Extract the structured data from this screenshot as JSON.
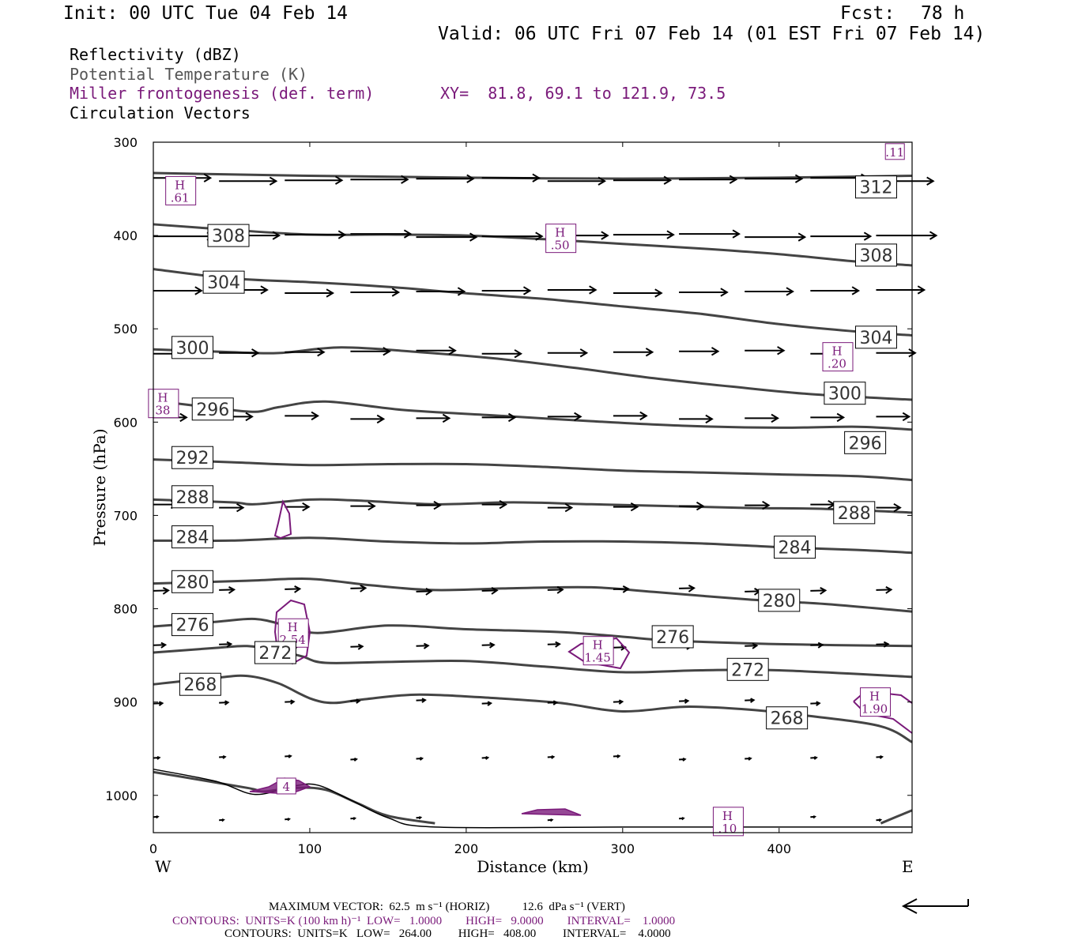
{
  "header": {
    "init": "Init: 00 UTC Tue 04 Feb 14",
    "fcst_label": "Fcst:",
    "fcst_value": "78 h",
    "valid": "Valid: 06 UTC Fri 07 Feb 14 (01 EST Fri 07 Feb 14)",
    "fields": [
      {
        "text": "Reflectivity (dBZ)",
        "color": "#000000"
      },
      {
        "text": "Potential Temperature (K)",
        "color": "#555555"
      },
      {
        "text": "Miller frontogenesis (def. term)",
        "color": "#7a1a7a"
      },
      {
        "text": "Circulation Vectors",
        "color": "#000000"
      }
    ],
    "xy": "XY=  81.8, 69.1 to 121.9, 73.5"
  },
  "chart_data": {
    "type": "line",
    "subtype": "vertical cross-section",
    "xlabel": "Distance (km)",
    "ylabel": "Pressure (hPa)",
    "xlim": [
      0,
      485
    ],
    "ylim": [
      1040,
      300
    ],
    "y_inverted": true,
    "x_ticks": [
      "0",
      "100",
      "200",
      "300",
      "400"
    ],
    "y_ticks": [
      "300",
      "400",
      "500",
      "600",
      "700",
      "800",
      "900",
      "1000"
    ],
    "x_end_labels": {
      "left": "W",
      "right": "E"
    },
    "theta_color": "#444444",
    "fronto_color": "#7a1a7a",
    "theta_contours": [
      {
        "level": "312",
        "points": [
          [
            0,
            333
          ],
          [
            100,
            336
          ],
          [
            200,
            338
          ],
          [
            300,
            339
          ],
          [
            400,
            338
          ],
          [
            485,
            336
          ]
        ],
        "label_pos": [
          462,
          348
        ]
      },
      {
        "level": "308",
        "points": [
          [
            0,
            388
          ],
          [
            50,
            394
          ],
          [
            100,
            399
          ],
          [
            150,
            399
          ],
          [
            200,
            400
          ],
          [
            250,
            404
          ],
          [
            300,
            409
          ],
          [
            350,
            414
          ],
          [
            400,
            420
          ],
          [
            450,
            428
          ],
          [
            485,
            432
          ]
        ],
        "label_pos": [
          48,
          400
        ]
      },
      {
        "level": "308",
        "points": [
          [
            0,
            388
          ],
          [
            485,
            432
          ]
        ],
        "label_pos": [
          462,
          421
        ],
        "label_only": true
      },
      {
        "level": "304",
        "points": [
          [
            0,
            436
          ],
          [
            50,
            446
          ],
          [
            100,
            450
          ],
          [
            150,
            455
          ],
          [
            200,
            462
          ],
          [
            250,
            468
          ],
          [
            300,
            476
          ],
          [
            350,
            484
          ],
          [
            400,
            495
          ],
          [
            450,
            503
          ],
          [
            485,
            507
          ]
        ],
        "label_pos": [
          45,
          450
        ]
      },
      {
        "level": "304",
        "points": [
          [
            0,
            436
          ],
          [
            485,
            507
          ]
        ],
        "label_pos": [
          462,
          509
        ],
        "label_only": true
      },
      {
        "level": "300",
        "points": [
          [
            0,
            522
          ],
          [
            50,
            525
          ],
          [
            80,
            526
          ],
          [
            120,
            520
          ],
          [
            170,
            525
          ],
          [
            220,
            532
          ],
          [
            270,
            542
          ],
          [
            320,
            553
          ],
          [
            370,
            562
          ],
          [
            420,
            570
          ],
          [
            485,
            576
          ]
        ],
        "label_pos": [
          25,
          520
        ]
      },
      {
        "level": "300",
        "points": [
          [
            0,
            522
          ],
          [
            485,
            576
          ]
        ],
        "label_pos": [
          442,
          569
        ],
        "label_only": true
      },
      {
        "level": "296",
        "points": [
          [
            0,
            577
          ],
          [
            40,
            585
          ],
          [
            65,
            589
          ],
          [
            80,
            584
          ],
          [
            110,
            578
          ],
          [
            160,
            587
          ],
          [
            220,
            593
          ],
          [
            280,
            599
          ],
          [
            340,
            604
          ],
          [
            400,
            606
          ],
          [
            450,
            605
          ],
          [
            485,
            608
          ]
        ],
        "label_pos": [
          38,
          586
        ]
      },
      {
        "level": "296",
        "points": [
          [
            0,
            577
          ],
          [
            485,
            608
          ]
        ],
        "label_pos": [
          455,
          622
        ],
        "label_only": true
      },
      {
        "level": "292",
        "points": [
          [
            0,
            640
          ],
          [
            50,
            643
          ],
          [
            100,
            646
          ],
          [
            150,
            645
          ],
          [
            200,
            645
          ],
          [
            250,
            648
          ],
          [
            300,
            652
          ],
          [
            350,
            654
          ],
          [
            400,
            656
          ],
          [
            450,
            658
          ],
          [
            485,
            662
          ]
        ],
        "label_pos": [
          25,
          638
        ]
      },
      {
        "level": "288",
        "points": [
          [
            0,
            683
          ],
          [
            50,
            686
          ],
          [
            65,
            688
          ],
          [
            100,
            683
          ],
          [
            130,
            684
          ],
          [
            180,
            688
          ],
          [
            230,
            686
          ],
          [
            280,
            688
          ],
          [
            330,
            690
          ],
          [
            380,
            692
          ],
          [
            430,
            693
          ],
          [
            485,
            697
          ]
        ],
        "label_pos": [
          25,
          680
        ]
      },
      {
        "level": "288",
        "points": [
          [
            0,
            683
          ],
          [
            485,
            697
          ]
        ],
        "label_pos": [
          448,
          697
        ],
        "label_only": true
      },
      {
        "level": "284",
        "points": [
          [
            0,
            727
          ],
          [
            50,
            727
          ],
          [
            100,
            724
          ],
          [
            150,
            728
          ],
          [
            200,
            730
          ],
          [
            250,
            728
          ],
          [
            300,
            728
          ],
          [
            350,
            730
          ],
          [
            400,
            734
          ],
          [
            450,
            737
          ],
          [
            485,
            740
          ]
        ],
        "label_pos": [
          25,
          723
        ]
      },
      {
        "level": "284",
        "points": [
          [
            0,
            727
          ],
          [
            485,
            740
          ]
        ],
        "label_pos": [
          410,
          734
        ],
        "label_only": true
      },
      {
        "level": "280",
        "points": [
          [
            0,
            773
          ],
          [
            60,
            770
          ],
          [
            100,
            768
          ],
          [
            140,
            775
          ],
          [
            180,
            780
          ],
          [
            230,
            778
          ],
          [
            280,
            777
          ],
          [
            320,
            782
          ],
          [
            380,
            790
          ],
          [
            430,
            795
          ],
          [
            485,
            803
          ]
        ],
        "label_pos": [
          25,
          771
        ]
      },
      {
        "level": "280",
        "points": [
          [
            0,
            773
          ],
          [
            485,
            803
          ]
        ],
        "label_pos": [
          400,
          791
        ],
        "label_only": true
      },
      {
        "level": "276",
        "points": [
          [
            0,
            819
          ],
          [
            40,
            814
          ],
          [
            65,
            811
          ],
          [
            85,
            818
          ],
          [
            105,
            826
          ],
          [
            150,
            818
          ],
          [
            200,
            822
          ],
          [
            260,
            825
          ],
          [
            300,
            830
          ],
          [
            330,
            834
          ],
          [
            400,
            838
          ],
          [
            485,
            840
          ]
        ],
        "label_pos": [
          25,
          817
        ]
      },
      {
        "level": "276",
        "points": [
          [
            0,
            819
          ],
          [
            485,
            840
          ]
        ],
        "label_pos": [
          332,
          830
        ],
        "label_only": true
      },
      {
        "level": "272",
        "points": [
          [
            0,
            847
          ],
          [
            40,
            842
          ],
          [
            60,
            840
          ],
          [
            80,
            845
          ],
          [
            95,
            851
          ],
          [
            110,
            858
          ],
          [
            150,
            857
          ],
          [
            200,
            856
          ],
          [
            250,
            862
          ],
          [
            300,
            868
          ],
          [
            350,
            866
          ],
          [
            400,
            866
          ],
          [
            485,
            873
          ]
        ],
        "label_pos": [
          78,
          847
        ]
      },
      {
        "level": "272",
        "points": [
          [
            0,
            847
          ],
          [
            485,
            873
          ]
        ],
        "label_pos": [
          380,
          865
        ],
        "label_only": true
      },
      {
        "level": "268",
        "points": [
          [
            0,
            881
          ],
          [
            40,
            874
          ],
          [
            60,
            872
          ],
          [
            80,
            880
          ],
          [
            100,
            896
          ],
          [
            115,
            901
          ],
          [
            135,
            897
          ],
          [
            170,
            892
          ],
          [
            220,
            896
          ],
          [
            260,
            901
          ],
          [
            300,
            910
          ],
          [
            340,
            905
          ],
          [
            380,
            908
          ],
          [
            420,
            915
          ],
          [
            465,
            926
          ],
          [
            485,
            943
          ]
        ],
        "label_pos": [
          30,
          881
        ]
      },
      {
        "level": "268",
        "points": [
          [
            0,
            881
          ],
          [
            485,
            943
          ]
        ],
        "label_pos": [
          405,
          917
        ],
        "label_only": true
      },
      {
        "level": "264",
        "points": [
          [
            0,
            975
          ],
          [
            60,
            992
          ],
          [
            70,
            996
          ],
          [
            90,
            992
          ],
          [
            110,
            994
          ],
          [
            130,
            1008
          ],
          [
            150,
            1022
          ],
          [
            180,
            1030
          ]
        ],
        "label_pos": null
      },
      {
        "level": "264b",
        "points": [
          [
            465,
            1030
          ],
          [
            485,
            1016
          ]
        ],
        "label_pos": null
      }
    ],
    "terrain": [
      [
        0,
        972
      ],
      [
        40,
        985
      ],
      [
        65,
        999
      ],
      [
        90,
        990
      ],
      [
        105,
        989
      ],
      [
        125,
        1004
      ],
      [
        150,
        1024
      ],
      [
        180,
        1034
      ],
      [
        300,
        1034
      ],
      [
        485,
        1034
      ]
    ],
    "frontogenesis_maxima": [
      {
        "letter": "H",
        "value": ".61",
        "x": 17,
        "p": 352
      },
      {
        "letter": "H",
        "value": ".50",
        "x": 260,
        "p": 403
      },
      {
        "letter": "H",
        "value": ".20",
        "x": 437,
        "p": 530
      },
      {
        "letter": "H",
        "value": "38",
        "x": 6,
        "p": 580
      },
      {
        "letter": "H",
        "value": "2.54",
        "x": 89,
        "p": 826
      },
      {
        "letter": "H",
        "value": "1.45",
        "x": 284,
        "p": 845
      },
      {
        "letter": "H",
        "value": "1.90",
        "x": 461,
        "p": 900
      },
      {
        "letter": "H",
        "value": ".10",
        "x": 367,
        "p": 1028
      },
      {
        "letter": "",
        "value": "4",
        "x": 85,
        "p": 990
      },
      {
        "letter": "",
        "value": ".11",
        "x": 474,
        "p": 310
      }
    ],
    "vector_rows": [
      {
        "p": 340,
        "dx": 38
      },
      {
        "p": 400,
        "dx": 40
      },
      {
        "p": 460,
        "dx": 32
      },
      {
        "p": 525,
        "dx": 26
      },
      {
        "p": 595,
        "dx": 22
      },
      {
        "p": 690,
        "dx": 16
      },
      {
        "p": 780,
        "dx": 10
      },
      {
        "p": 840,
        "dx": 8
      },
      {
        "p": 900,
        "dx": 6
      },
      {
        "p": 960,
        "dx": 4
      },
      {
        "p": 1025,
        "dx": 3
      }
    ]
  },
  "footer": {
    "max_vector": "MAXIMUM VECTOR:  62.5  m s⁻¹ (HORIZ)           12.6  dPa s⁻¹ (VERT)",
    "contours_fronto": "CONTOURS:  UNITS=K (100 km h)⁻¹  LOW=   1.0000        HIGH=   9.0000        INTERVAL=    1.0000",
    "contours_theta": "CONTOURS:  UNITS=K   LOW=   264.00         HIGH=   408.00         INTERVAL=    4.0000"
  }
}
